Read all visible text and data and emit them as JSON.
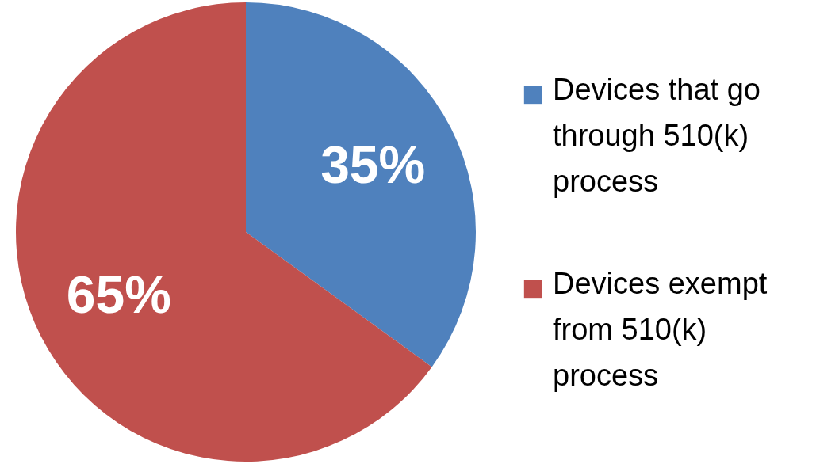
{
  "chart_data": {
    "type": "pie",
    "categories": [
      "Devices that go through 510(k) process",
      "Devices exempt from 510(k) process"
    ],
    "values": [
      35,
      65
    ],
    "colors": [
      "#4f81bd",
      "#c0504d"
    ],
    "value_labels": [
      "35%",
      "65%"
    ],
    "legend": "right"
  }
}
